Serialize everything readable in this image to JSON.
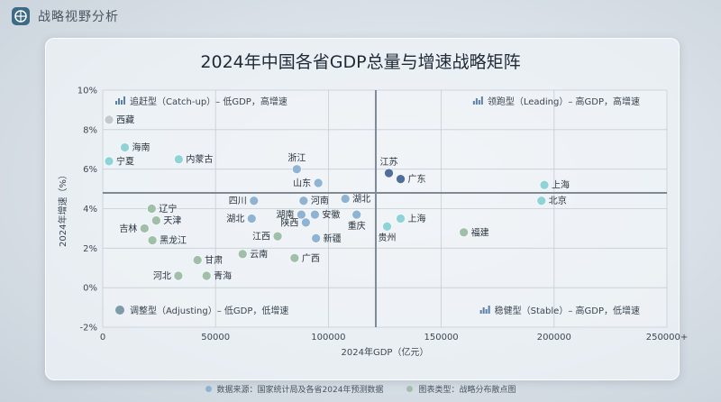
{
  "app": {
    "brand": "战略视野分析"
  },
  "colors": {
    "quadrant_line": "#7f8a95",
    "grid": "#c5ced6",
    "dot_blue": "#8fb3d3",
    "dot_navy": "#4f6e9a",
    "dot_teal": "#8ed3d5",
    "dot_sage": "#9fbfa8",
    "dot_grey": "#c3c9ce"
  },
  "chart_data": {
    "type": "scatter",
    "title": "2024年中国各省GDP总量与增速战略矩阵",
    "xlabel": "2024年GDP（亿元）",
    "ylabel": "2024年增速（%）",
    "xlim": [
      0,
      250000
    ],
    "ylim": [
      -2,
      10
    ],
    "x_ticks": [
      "0",
      "50000",
      "100000",
      "150000",
      "200000",
      "250000+"
    ],
    "y_ticks": [
      "-2%",
      "0%",
      "2%",
      "4%",
      "6%",
      "8%",
      "10%"
    ],
    "divider": {
      "x": 121000,
      "y": 4.8
    },
    "quadrants": [
      {
        "name": "catch-up",
        "label": "追赶型（Catch-up）– 低GDP，高增速",
        "icon": "bar-chart-icon",
        "position": "top-left"
      },
      {
        "name": "leading",
        "label": "领跑型（Leading）– 高GDP，高增速",
        "icon": "bar-chart-icon",
        "position": "top-right"
      },
      {
        "name": "adjusting",
        "label": "调整型（Adjusting）– 低GDP，低增速",
        "icon": "pie-chart-icon",
        "position": "bottom-left"
      },
      {
        "name": "stable",
        "label": "稳健型（Stable）– 高GDP，低增速",
        "icon": "bar-chart-icon",
        "position": "bottom-right"
      }
    ],
    "points": [
      {
        "name": "西藏",
        "x": 2800,
        "y": 8.5,
        "color": "dot_grey",
        "label_pos": "right"
      },
      {
        "name": "海南",
        "x": 9800,
        "y": 7.1,
        "color": "dot_teal",
        "label_pos": "right"
      },
      {
        "name": "宁夏",
        "x": 2800,
        "y": 6.4,
        "color": "dot_teal",
        "label_pos": "right"
      },
      {
        "name": "内蒙古",
        "x": 33700,
        "y": 6.5,
        "color": "dot_teal",
        "label_pos": "right"
      },
      {
        "name": "浙江",
        "x": 86000,
        "y": 6.0,
        "color": "dot_blue",
        "label_pos": "top"
      },
      {
        "name": "山东",
        "x": 95500,
        "y": 5.3,
        "color": "dot_blue",
        "label_pos": "left"
      },
      {
        "name": "江苏",
        "x": 126800,
        "y": 5.8,
        "color": "dot_navy",
        "label_pos": "top"
      },
      {
        "name": "广东",
        "x": 132000,
        "y": 5.5,
        "color": "dot_navy",
        "label_pos": "right"
      },
      {
        "name": "上海",
        "x": 195700,
        "y": 5.2,
        "color": "dot_teal",
        "label_pos": "right"
      },
      {
        "name": "北京",
        "x": 194400,
        "y": 4.4,
        "color": "dot_teal",
        "label_pos": "right"
      },
      {
        "name": "四川",
        "x": 67000,
        "y": 4.4,
        "color": "dot_blue",
        "label_pos": "left"
      },
      {
        "name": "河南",
        "x": 89000,
        "y": 4.4,
        "color": "dot_blue",
        "label_pos": "right"
      },
      {
        "name": "湖北",
        "x": 107500,
        "y": 4.5,
        "color": "dot_blue",
        "label_pos": "right"
      },
      {
        "name": "湖南",
        "x": 88000,
        "y": 3.7,
        "color": "dot_blue",
        "label_pos": "left"
      },
      {
        "name": "安徽",
        "x": 94000,
        "y": 3.7,
        "color": "dot_blue",
        "label_pos": "right"
      },
      {
        "name": "重庆",
        "x": 112500,
        "y": 3.7,
        "color": "dot_blue",
        "label_pos": "bottom"
      },
      {
        "name": "湖北",
        "x": 66000,
        "y": 3.5,
        "color": "dot_blue",
        "label_pos": "left"
      },
      {
        "name": "陕西",
        "x": 90000,
        "y": 3.3,
        "color": "dot_blue",
        "label_pos": "left"
      },
      {
        "name": "上海",
        "x": 132000,
        "y": 3.5,
        "color": "dot_teal",
        "label_pos": "right"
      },
      {
        "name": "贵州",
        "x": 126000,
        "y": 3.1,
        "color": "dot_teal",
        "label_pos": "bottom"
      },
      {
        "name": "福建",
        "x": 160000,
        "y": 2.8,
        "color": "dot_sage",
        "label_pos": "right"
      },
      {
        "name": "江西",
        "x": 77500,
        "y": 2.6,
        "color": "dot_sage",
        "label_pos": "left"
      },
      {
        "name": "新疆",
        "x": 94500,
        "y": 2.5,
        "color": "dot_blue",
        "label_pos": "right"
      },
      {
        "name": "辽宁",
        "x": 21700,
        "y": 4.0,
        "color": "dot_sage",
        "label_pos": "right"
      },
      {
        "name": "天津",
        "x": 23700,
        "y": 3.4,
        "color": "dot_sage",
        "label_pos": "right"
      },
      {
        "name": "吉林",
        "x": 18500,
        "y": 3.0,
        "color": "dot_sage",
        "label_pos": "left"
      },
      {
        "name": "黑龙江",
        "x": 22000,
        "y": 2.4,
        "color": "dot_sage",
        "label_pos": "right"
      },
      {
        "name": "云南",
        "x": 62000,
        "y": 1.7,
        "color": "dot_sage",
        "label_pos": "right"
      },
      {
        "name": "广西",
        "x": 85000,
        "y": 1.5,
        "color": "dot_sage",
        "label_pos": "right"
      },
      {
        "name": "甘肃",
        "x": 42000,
        "y": 1.4,
        "color": "dot_sage",
        "label_pos": "right"
      },
      {
        "name": "河北",
        "x": 33500,
        "y": 0.6,
        "color": "dot_sage",
        "label_pos": "left"
      },
      {
        "name": "青海",
        "x": 46000,
        "y": 0.6,
        "color": "dot_sage",
        "label_pos": "right"
      }
    ]
  },
  "footer": {
    "source": "数据来源：国家统计局及各省2024年预测数据",
    "chart_kind": "图表类型：战略分布散点图"
  }
}
